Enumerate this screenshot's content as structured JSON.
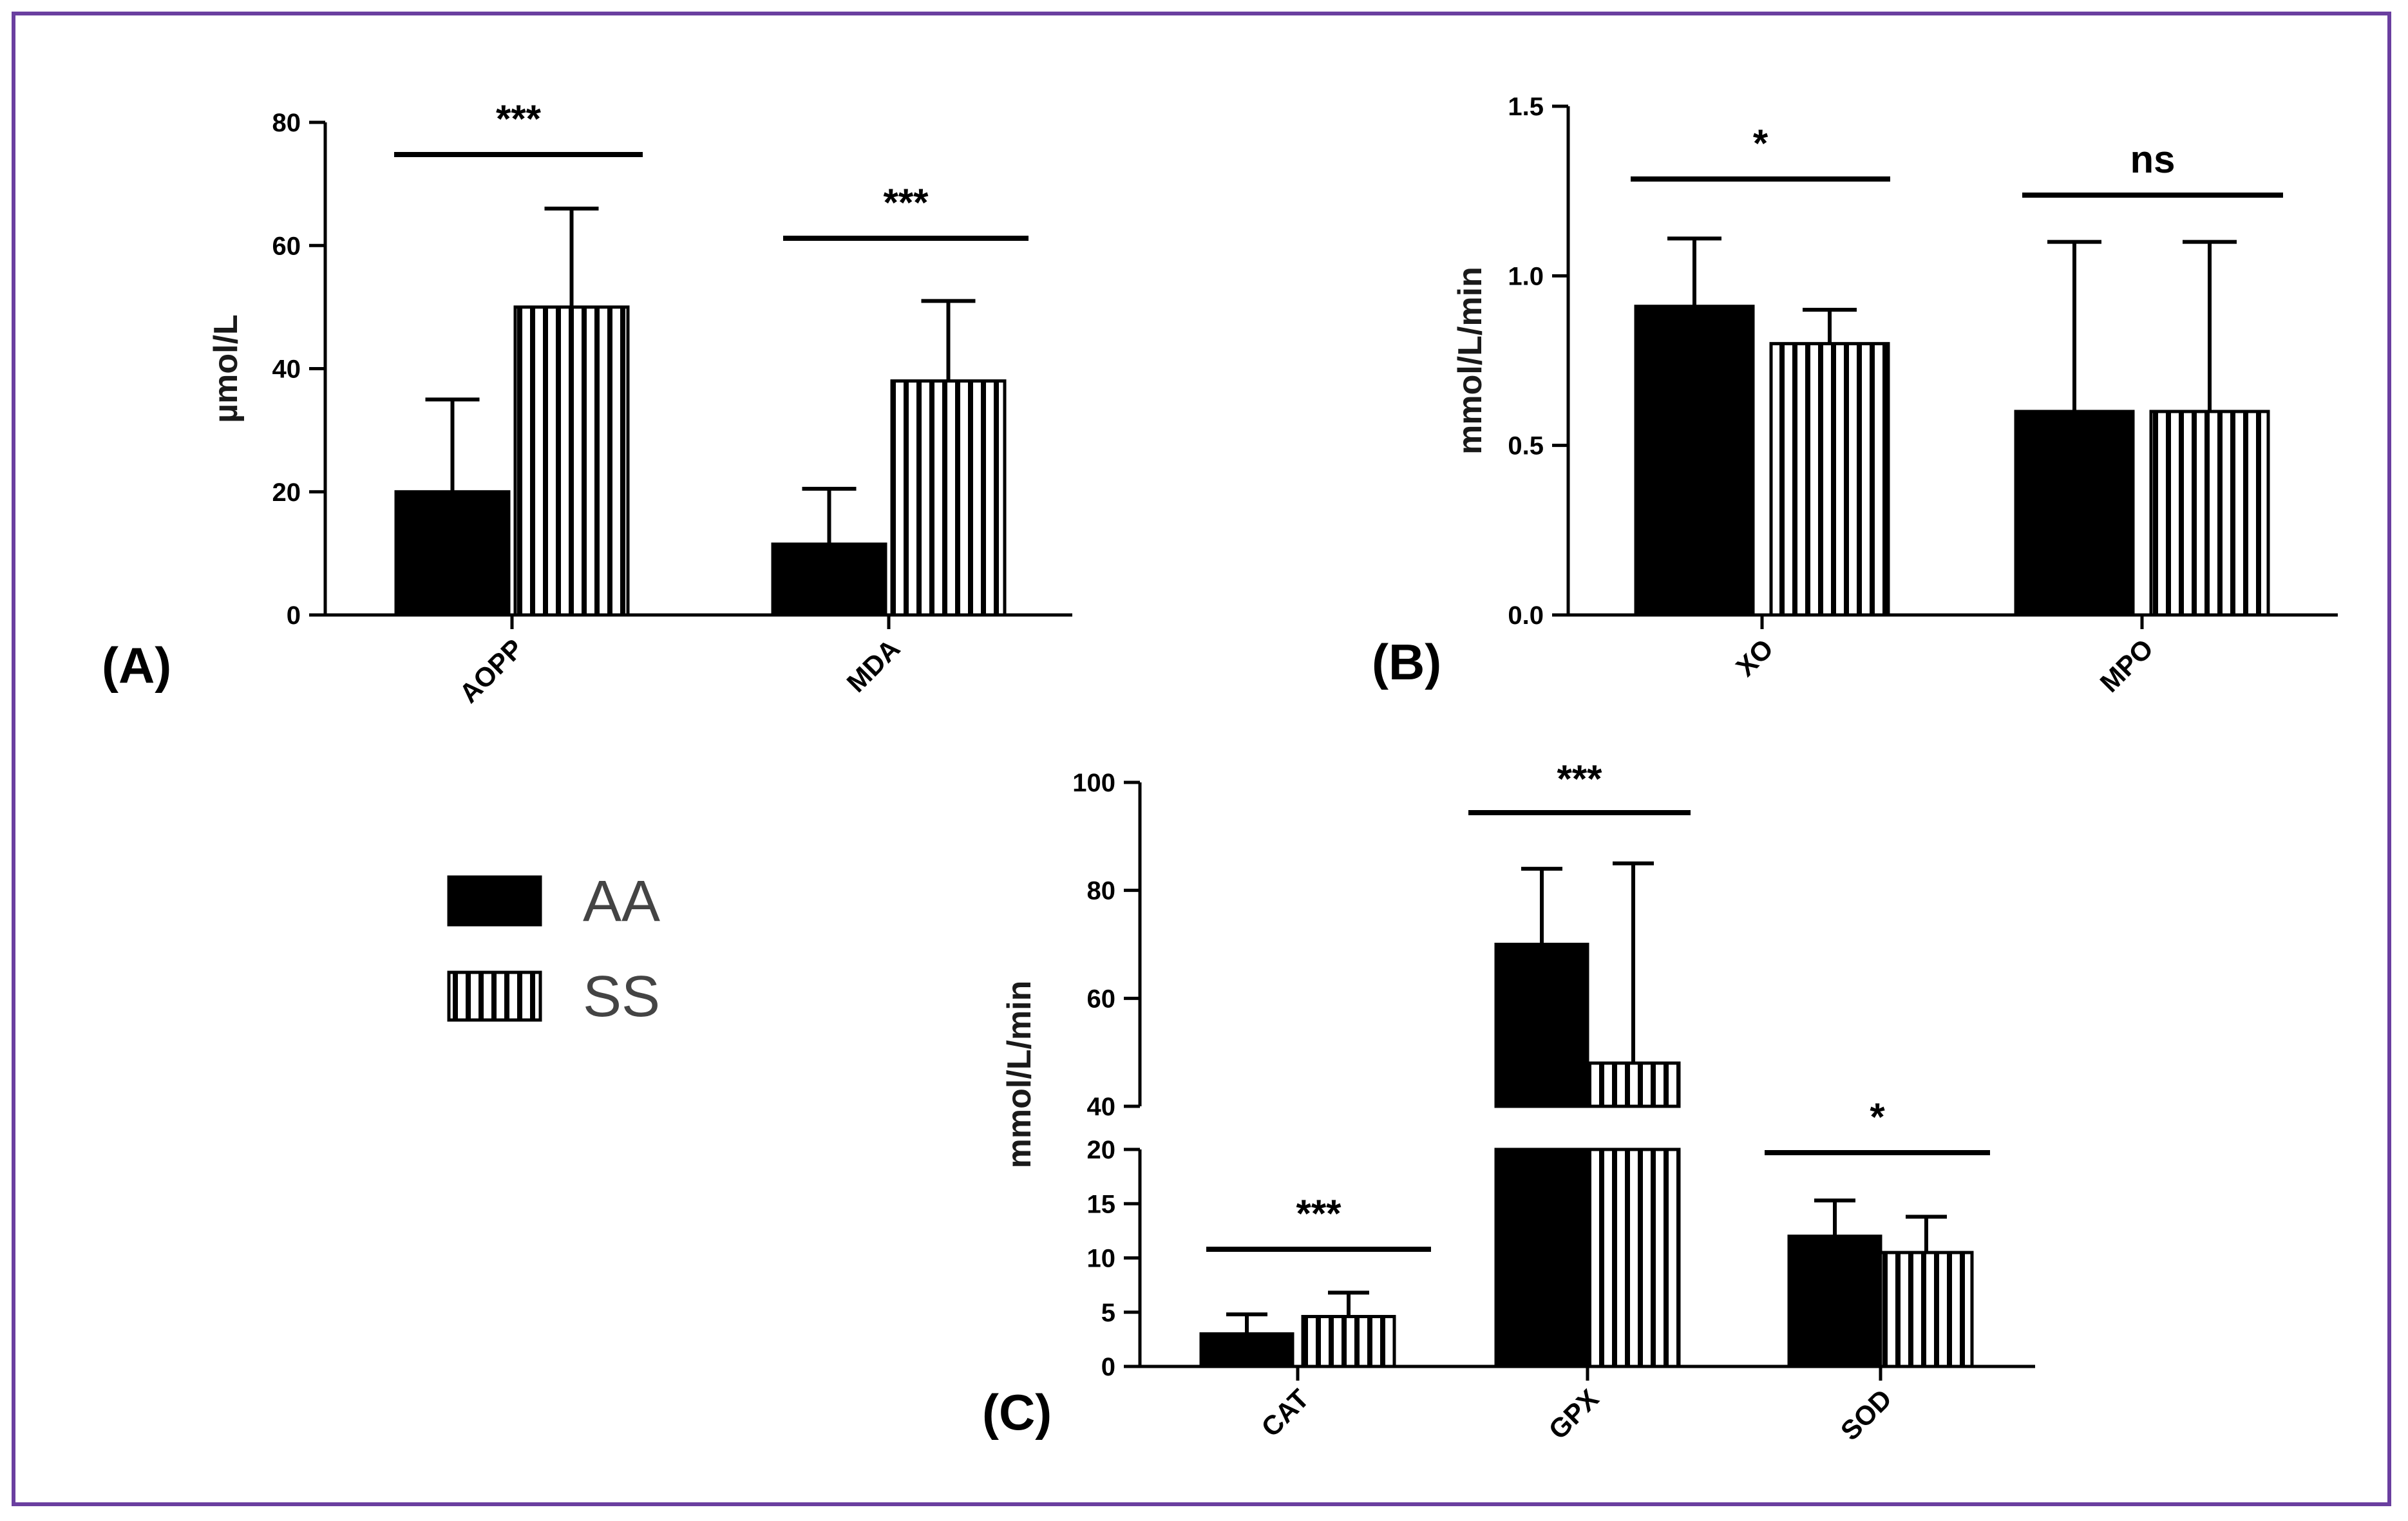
{
  "chart_data": [
    {
      "id": "A",
      "type": "bar",
      "panel_label": "(A)",
      "ylabel": "µmol/L",
      "ylim": [
        0,
        80
      ],
      "yticks": [
        0,
        20,
        40,
        60,
        80
      ],
      "categories": [
        "AOPP",
        "MDA"
      ],
      "series": [
        {
          "name": "AA",
          "values": [
            20,
            11.5
          ],
          "errors": [
            15,
            9
          ]
        },
        {
          "name": "SS",
          "values": [
            50,
            38
          ],
          "errors": [
            16,
            13
          ]
        }
      ],
      "significance": [
        "***",
        "***"
      ]
    },
    {
      "id": "B",
      "type": "bar",
      "panel_label": "(B)",
      "ylabel": "mmol/L/min",
      "ylim": [
        0,
        1.5
      ],
      "yticks": [
        "0.0",
        "0.5",
        "1.0",
        "1.5"
      ],
      "categories": [
        "XO",
        "MPO"
      ],
      "series": [
        {
          "name": "AA",
          "values": [
            0.91,
            0.6
          ],
          "errors": [
            0.2,
            0.5
          ]
        },
        {
          "name": "SS",
          "values": [
            0.8,
            0.6
          ],
          "errors": [
            0.1,
            0.5
          ]
        }
      ],
      "significance": [
        "*",
        "ns"
      ]
    },
    {
      "id": "C",
      "type": "bar",
      "panel_label": "(C)",
      "ylabel": "mmol/L/min",
      "axis_break": {
        "lower": [
          0,
          20
        ],
        "upper": [
          40,
          100
        ]
      },
      "yticks_lower": [
        0,
        5,
        10,
        15,
        20
      ],
      "yticks_upper": [
        40,
        60,
        80,
        100
      ],
      "categories": [
        "CAT",
        "GPX",
        "SOD"
      ],
      "series": [
        {
          "name": "AA",
          "values": [
            3,
            70,
            12
          ],
          "errors": [
            1.8,
            14,
            3.3
          ]
        },
        {
          "name": "SS",
          "values": [
            4.6,
            48,
            10.5
          ],
          "errors": [
            2.2,
            37,
            3.3
          ]
        }
      ],
      "significance": [
        "***",
        "***",
        "*"
      ]
    }
  ],
  "legend": {
    "entries": [
      {
        "label": "AA",
        "fill": "solid"
      },
      {
        "label": "SS",
        "fill": "vertical-stripes"
      }
    ]
  },
  "colors": {
    "frame": "#6a3fa0",
    "bars": "#000000",
    "ylabel": "#1a1a1a"
  }
}
